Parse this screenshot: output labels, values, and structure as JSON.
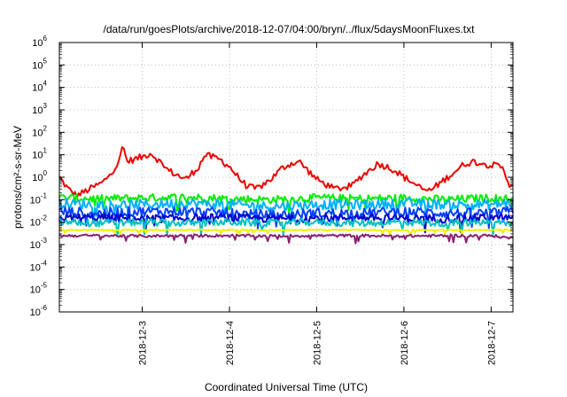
{
  "chart_data": {
    "type": "line",
    "title": "/data/run/goesPlots/archive/2018-12-07/04:00/bryn/../flux/5daysMoonFluxes.txt",
    "xlabel": "Coordinated Universal Time (UTC)",
    "ylabel": "protons/cm²-s-sr-MeV",
    "yscale": "log",
    "ylim": [
      1e-06,
      1000000.0
    ],
    "xlim": [
      2.05,
      7.25
    ],
    "x_unit": "day of December 2018",
    "x_ticks": [
      {
        "x": 3,
        "label": "2018-12-3"
      },
      {
        "x": 4,
        "label": "2018-12-4"
      },
      {
        "x": 5,
        "label": "2018-12-5"
      },
      {
        "x": 6,
        "label": "2018-12-6"
      },
      {
        "x": 7,
        "label": "2018-12-7"
      }
    ],
    "y_ticks": [
      {
        "base": "10",
        "exp": "-6",
        "value": 1e-06
      },
      {
        "base": "10",
        "exp": "-5",
        "value": 1e-05
      },
      {
        "base": "10",
        "exp": "-4",
        "value": 0.0001
      },
      {
        "base": "10",
        "exp": "-3",
        "value": 0.001
      },
      {
        "base": "10",
        "exp": "-2",
        "value": 0.01
      },
      {
        "base": "10",
        "exp": "-1",
        "value": 0.1
      },
      {
        "base": "10",
        "exp": "0",
        "value": 1
      },
      {
        "base": "10",
        "exp": "1",
        "value": 10
      },
      {
        "base": "10",
        "exp": "2",
        "value": 100
      },
      {
        "base": "10",
        "exp": "3",
        "value": 1000
      },
      {
        "base": "10",
        "exp": "4",
        "value": 10000
      },
      {
        "base": "10",
        "exp": "5",
        "value": 100000
      },
      {
        "base": "10",
        "exp": "6",
        "value": 1000000
      }
    ],
    "grid": true,
    "legend": "none",
    "series": [
      {
        "color": "#ee0000",
        "x": [
          2.05,
          2.15,
          2.25,
          2.4,
          2.55,
          2.7,
          2.75,
          2.78,
          2.82,
          3.0,
          3.1,
          3.2,
          3.3,
          3.5,
          3.65,
          3.72,
          3.8,
          3.9,
          4.0,
          4.1,
          4.2,
          4.3,
          4.4,
          4.5,
          4.6,
          4.7,
          4.8,
          4.9,
          5.0,
          5.2,
          5.4,
          5.5,
          5.6,
          5.7,
          5.8,
          5.9,
          6.0,
          6.1,
          6.2,
          6.3,
          6.4,
          6.5,
          6.6,
          6.7,
          6.8,
          6.9,
          7.0,
          7.1,
          7.15,
          7.2
        ],
        "y": [
          1.0,
          0.3,
          0.15,
          0.3,
          0.6,
          3.0,
          8.0,
          30,
          5.0,
          8.0,
          12.0,
          5.0,
          2.0,
          0.8,
          3.0,
          10.0,
          8.0,
          6.0,
          3.0,
          1.0,
          0.4,
          0.3,
          0.5,
          1.0,
          2.5,
          4.0,
          5.0,
          2.0,
          0.8,
          0.3,
          0.4,
          1.0,
          2.0,
          4.0,
          3.0,
          2.0,
          1.0,
          0.6,
          0.3,
          0.25,
          0.5,
          1.0,
          2.0,
          4.0,
          5.0,
          4.0,
          3.5,
          3.0,
          2.0,
          0.5
        ]
      },
      {
        "color": "#00ee00",
        "x": [
          2.05,
          2.5,
          3.0,
          3.5,
          4.0,
          4.5,
          5.0,
          5.5,
          6.0,
          6.5,
          7.0,
          7.2
        ],
        "y": [
          0.12,
          0.11,
          0.12,
          0.13,
          0.11,
          0.1,
          0.12,
          0.11,
          0.12,
          0.1,
          0.12,
          0.11
        ]
      },
      {
        "color": "#00b0ff",
        "x": [
          2.05,
          2.5,
          3.0,
          3.5,
          4.0,
          4.5,
          5.0,
          5.5,
          6.0,
          6.5,
          7.0,
          7.2
        ],
        "y": [
          0.07,
          0.06,
          0.06,
          0.07,
          0.06,
          0.05,
          0.06,
          0.06,
          0.07,
          0.06,
          0.06,
          0.07
        ]
      },
      {
        "color": "#0040ff",
        "x": [
          2.05,
          2.5,
          3.0,
          3.5,
          4.0,
          4.5,
          5.0,
          5.5,
          6.0,
          6.5,
          7.0,
          7.2
        ],
        "y": [
          0.03,
          0.025,
          0.03,
          0.03,
          0.025,
          0.02,
          0.025,
          0.025,
          0.03,
          0.025,
          0.025,
          0.03
        ]
      },
      {
        "color": "#0000cc",
        "x": [
          2.05,
          2.5,
          3.0,
          3.5,
          4.0,
          4.5,
          5.0,
          5.5,
          6.0,
          6.5,
          7.0,
          7.2
        ],
        "y": [
          0.015,
          0.016,
          0.014,
          0.015,
          0.016,
          0.014,
          0.015,
          0.016,
          0.015,
          0.014,
          0.016,
          0.015
        ]
      },
      {
        "color": "#00c0c0",
        "x": [
          2.05,
          2.5,
          3.0,
          3.5,
          4.0,
          4.5,
          5.0,
          5.5,
          6.0,
          6.5,
          7.0,
          7.2
        ],
        "y": [
          0.01,
          0.009,
          0.01,
          0.009,
          0.01,
          0.009,
          0.01,
          0.009,
          0.01,
          0.009,
          0.01,
          0.009
        ]
      },
      {
        "color": "#f0f000",
        "x": [
          2.05,
          2.5,
          3.0,
          3.5,
          4.0,
          4.5,
          5.0,
          5.5,
          6.0,
          6.5,
          7.0,
          7.2
        ],
        "y": [
          0.0045,
          0.0045,
          0.0044,
          0.0045,
          0.0045,
          0.0044,
          0.0045,
          0.0045,
          0.0044,
          0.0045,
          0.0045,
          0.0045
        ]
      },
      {
        "color": "#8b2070",
        "x": [
          2.05,
          2.5,
          3.0,
          3.5,
          4.0,
          4.5,
          5.0,
          5.5,
          6.0,
          6.5,
          7.0,
          7.2
        ],
        "y": [
          0.0025,
          0.0025,
          0.0024,
          0.0025,
          0.0025,
          0.0024,
          0.0025,
          0.0025,
          0.0024,
          0.0025,
          0.0025,
          0.002
        ]
      }
    ]
  }
}
